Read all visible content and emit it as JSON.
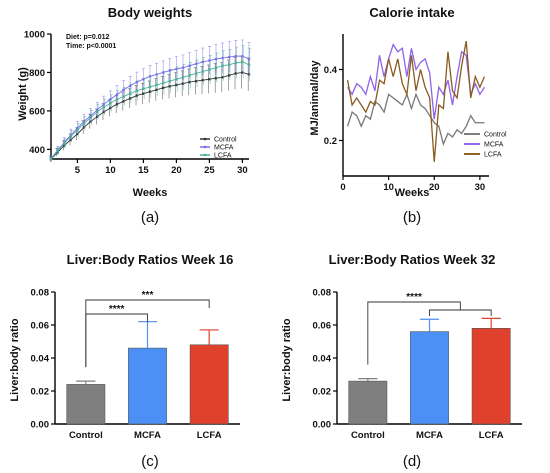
{
  "chart_data": [
    {
      "panel_label": "(a)",
      "type": "line",
      "title": "Body weights",
      "xlabel": "Weeks",
      "ylabel": "Weight (g)",
      "xlim": [
        1,
        31
      ],
      "ylim": [
        350,
        1000
      ],
      "xticks": [
        5,
        10,
        15,
        20,
        25,
        30
      ],
      "yticks": [
        400,
        600,
        800,
        1000
      ],
      "stats": [
        "Diet: p=0.012",
        "Time: p<0.0001"
      ],
      "legend_position": "bottom-right",
      "x": [
        1,
        2,
        3,
        4,
        5,
        6,
        7,
        8,
        9,
        10,
        11,
        12,
        13,
        14,
        15,
        16,
        17,
        18,
        19,
        20,
        21,
        22,
        23,
        24,
        25,
        26,
        27,
        28,
        29,
        30,
        31
      ],
      "series": [
        {
          "name": "Control",
          "color": "#333333",
          "values": [
            350,
            385,
            420,
            450,
            480,
            515,
            545,
            570,
            595,
            615,
            635,
            650,
            665,
            680,
            690,
            700,
            710,
            720,
            728,
            735,
            742,
            750,
            755,
            760,
            765,
            770,
            775,
            785,
            795,
            800,
            790
          ],
          "errors": [
            15,
            20,
            25,
            30,
            32,
            35,
            38,
            40,
            42,
            44,
            46,
            48,
            50,
            52,
            54,
            56,
            58,
            60,
            62,
            64,
            66,
            68,
            70,
            72,
            74,
            76,
            78,
            80,
            82,
            84,
            86
          ]
        },
        {
          "name": "MCFA",
          "color": "#7b6cf0",
          "values": [
            352,
            395,
            435,
            475,
            510,
            545,
            575,
            605,
            635,
            660,
            685,
            710,
            730,
            750,
            765,
            780,
            790,
            800,
            810,
            818,
            825,
            835,
            845,
            855,
            862,
            870,
            875,
            880,
            885,
            885,
            870
          ],
          "errors": [
            15,
            20,
            25,
            30,
            34,
            36,
            38,
            40,
            42,
            44,
            46,
            48,
            50,
            52,
            54,
            56,
            58,
            60,
            62,
            64,
            66,
            68,
            70,
            72,
            74,
            76,
            78,
            80,
            82,
            84,
            86
          ]
        },
        {
          "name": "LCFA",
          "color": "#4caf9c",
          "values": [
            350,
            392,
            430,
            468,
            500,
            535,
            565,
            595,
            620,
            640,
            660,
            675,
            690,
            705,
            715,
            725,
            735,
            745,
            755,
            765,
            775,
            785,
            795,
            805,
            815,
            825,
            835,
            840,
            850,
            855,
            840
          ],
          "errors": [
            15,
            20,
            25,
            30,
            34,
            36,
            38,
            40,
            42,
            44,
            46,
            48,
            50,
            52,
            54,
            56,
            58,
            60,
            62,
            64,
            66,
            68,
            70,
            72,
            74,
            76,
            78,
            80,
            82,
            84,
            86
          ]
        }
      ]
    },
    {
      "panel_label": "(b)",
      "type": "line",
      "title": "Calorie intake",
      "xlabel": "Weeks",
      "ylabel": "MJ/animal/day",
      "xlim": [
        0,
        32
      ],
      "ylim": [
        0.1,
        0.5
      ],
      "xticks": [
        0,
        10,
        20,
        30
      ],
      "yticks": [
        0.2,
        0.4
      ],
      "legend_position": "bottom-right",
      "x": [
        1,
        2,
        3,
        4,
        5,
        6,
        7,
        8,
        9,
        10,
        11,
        12,
        13,
        14,
        15,
        16,
        17,
        18,
        19,
        20,
        21,
        22,
        23,
        24,
        25,
        26,
        27,
        28,
        29,
        30,
        31
      ],
      "series": [
        {
          "name": "Control",
          "color": "#777777",
          "values": [
            0.24,
            0.28,
            0.27,
            0.24,
            0.27,
            0.26,
            0.31,
            0.3,
            0.28,
            0.33,
            0.32,
            0.31,
            0.3,
            0.33,
            0.29,
            0.33,
            0.3,
            0.29,
            0.27,
            0.25,
            0.24,
            0.19,
            0.22,
            0.21,
            0.23,
            0.22,
            0.24,
            0.27,
            0.25,
            0.25,
            0.25
          ]
        },
        {
          "name": "MCFA",
          "color": "#8e63e8",
          "values": [
            0.35,
            0.33,
            0.36,
            0.35,
            0.33,
            0.38,
            0.34,
            0.44,
            0.38,
            0.43,
            0.47,
            0.45,
            0.46,
            0.38,
            0.46,
            0.4,
            0.42,
            0.43,
            0.39,
            0.26,
            0.35,
            0.33,
            0.37,
            0.3,
            0.38,
            0.45,
            0.44,
            0.33,
            0.36,
            0.33,
            0.35
          ]
        },
        {
          "name": "LCFA",
          "color": "#8a5a1f",
          "values": [
            0.37,
            0.3,
            0.32,
            0.3,
            0.28,
            0.31,
            0.3,
            0.37,
            0.36,
            0.43,
            0.38,
            0.43,
            0.36,
            0.33,
            0.44,
            0.34,
            0.4,
            0.35,
            0.32,
            0.14,
            0.3,
            0.29,
            0.45,
            0.34,
            0.32,
            0.41,
            0.48,
            0.32,
            0.38,
            0.35,
            0.38
          ]
        }
      ]
    },
    {
      "panel_label": "(c)",
      "type": "bar",
      "title": "Liver:Body Ratios Week 16",
      "ylabel": "Liver:body ratio",
      "categories": [
        "Control",
        "MCFA",
        "LCFA"
      ],
      "values": [
        0.024,
        0.046,
        0.048
      ],
      "errors": [
        0.002,
        0.016,
        0.009
      ],
      "colors": [
        "#7f7f7f",
        "#4a90f5",
        "#e0412d"
      ],
      "ylim": [
        0,
        0.08
      ],
      "yticks": [
        "0.00",
        "0.02",
        "0.04",
        "0.06",
        "0.08"
      ],
      "significance": [
        {
          "from": 0,
          "to": 1,
          "label": "****"
        },
        {
          "from": 0,
          "to": 2,
          "label": "***"
        }
      ]
    },
    {
      "panel_label": "(d)",
      "type": "bar",
      "title": "Liver:Body Ratios Week 32",
      "ylabel": "Liver:body ratio",
      "categories": [
        "Control",
        "MCFA",
        "LCFA"
      ],
      "values": [
        0.026,
        0.056,
        0.058
      ],
      "errors": [
        0.0015,
        0.0075,
        0.006
      ],
      "colors": [
        "#7f7f7f",
        "#4a90f5",
        "#e0412d"
      ],
      "ylim": [
        0,
        0.08
      ],
      "yticks": [
        "0.00",
        "0.02",
        "0.04",
        "0.06",
        "0.08"
      ],
      "significance": [
        {
          "from": 0,
          "to": [
            1,
            2
          ],
          "label": "****"
        }
      ]
    }
  ]
}
